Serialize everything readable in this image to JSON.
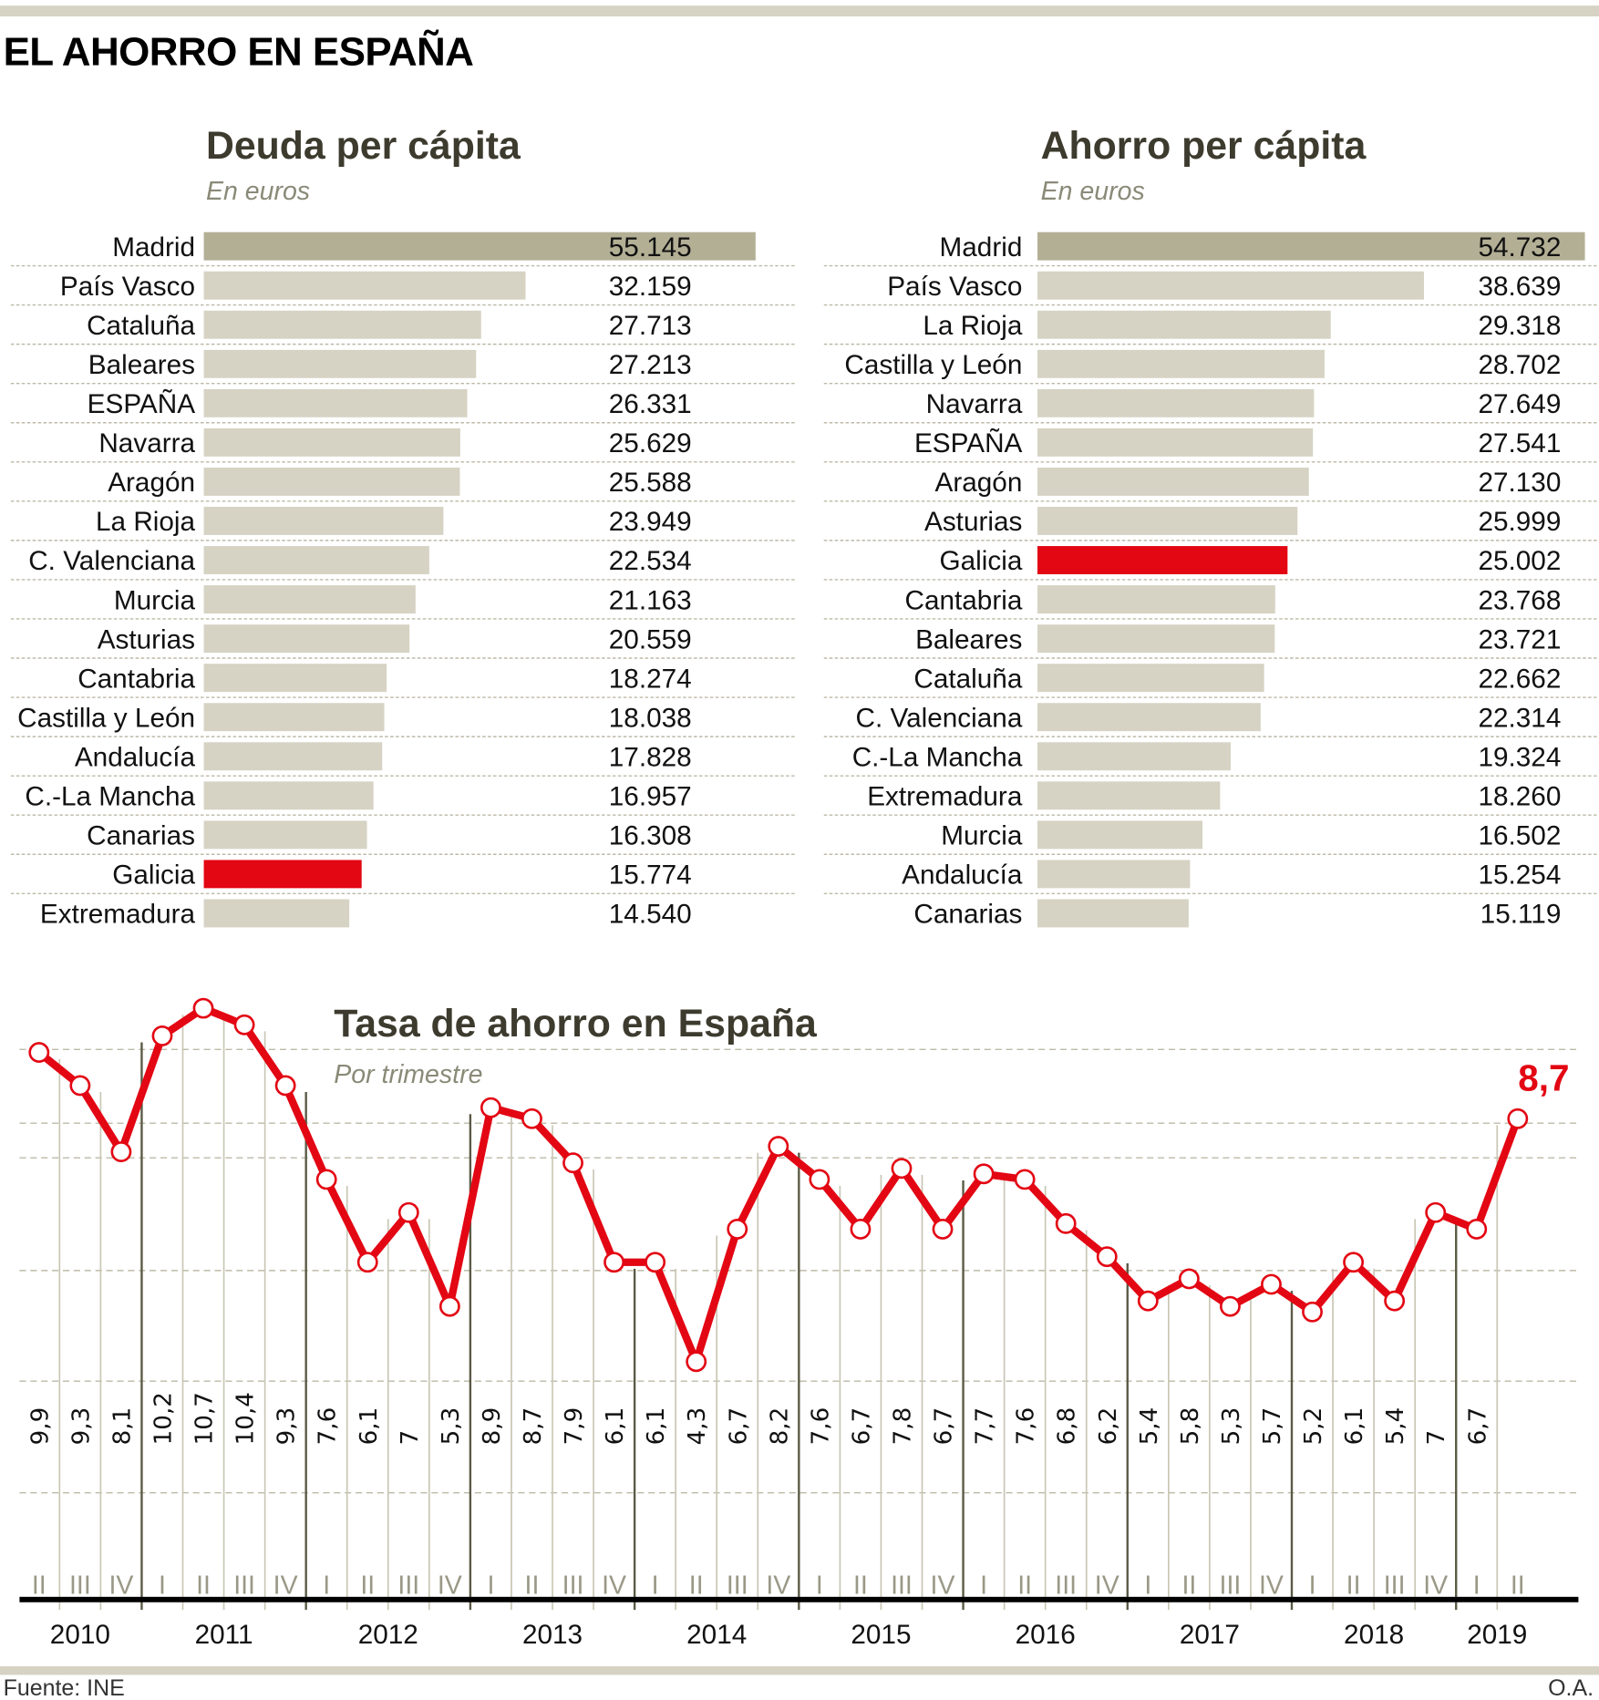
{
  "header": {
    "title": "EL AHORRO EN ESPAÑA"
  },
  "colors": {
    "rule": "#d6d3c4",
    "bar_default": "#d6d3c4",
    "bar_top": "#b3af95",
    "highlight": "#e30613",
    "heading": "#3d3b2e",
    "subtitle": "#8a8a78"
  },
  "footer": {
    "source": "Fuente: INE",
    "credit": "O.A."
  },
  "chart_data": [
    {
      "type": "bar",
      "orientation": "horizontal",
      "title": "Deuda per cápita",
      "subtitle": "En euros",
      "unit": "euros",
      "highlight": "Galicia",
      "top_category": "Madrid",
      "categories": [
        "Madrid",
        "País Vasco",
        "Cataluña",
        "Baleares",
        "ESPAÑA",
        "Navarra",
        "Aragón",
        "La Rioja",
        "C. Valenciana",
        "Murcia",
        "Asturias",
        "Cantabria",
        "Castilla y León",
        "Andalucía",
        "C.-La Mancha",
        "Canarias",
        "Galicia",
        "Extremadura"
      ],
      "values": [
        55145,
        32159,
        27713,
        27213,
        26331,
        25629,
        25588,
        23949,
        22534,
        21163,
        20559,
        18274,
        18038,
        17828,
        16957,
        16308,
        15774,
        14540
      ],
      "labels": [
        "55.145",
        "32.159",
        "27.713",
        "27.213",
        "26.331",
        "25.629",
        "25.588",
        "23.949",
        "22.534",
        "21.163",
        "20.559",
        "18.274",
        "18.038",
        "17.828",
        "16.957",
        "16.308",
        "15.774",
        "14.540"
      ]
    },
    {
      "type": "bar",
      "orientation": "horizontal",
      "title": "Ahorro per cápita",
      "subtitle": "En euros",
      "unit": "euros",
      "highlight": "Galicia",
      "top_category": "Madrid",
      "categories": [
        "Madrid",
        "País Vasco",
        "La Rioja",
        "Castilla y León",
        "Navarra",
        "ESPAÑA",
        "Aragón",
        "Asturias",
        "Galicia",
        "Cantabria",
        "Baleares",
        "Cataluña",
        "C. Valenciana",
        "C.-La Mancha",
        "Extremadura",
        "Murcia",
        "Andalucía",
        "Canarias"
      ],
      "values": [
        54732,
        38639,
        29318,
        28702,
        27649,
        27541,
        27130,
        25999,
        25002,
        23768,
        23721,
        22662,
        22314,
        19324,
        18260,
        16502,
        15254,
        15119
      ],
      "labels": [
        "54.732",
        "38.639",
        "29.318",
        "28.702",
        "27.649",
        "27.541",
        "27.130",
        "25.999",
        "25.002",
        "23.768",
        "23.721",
        "22.662",
        "22.314",
        "19.324",
        "18.260",
        "16.502",
        "15.254",
        "15.119"
      ]
    },
    {
      "type": "line",
      "title": "Tasa de ahorro en España",
      "subtitle": "Por trimestre",
      "xlabel": "",
      "ylabel": "",
      "ylim": [
        4.3,
        10.7
      ],
      "grid": true,
      "last_value_label": "8,7",
      "quarters": [
        "II",
        "III",
        "IV",
        "I",
        "II",
        "III",
        "IV",
        "I",
        "II",
        "III",
        "IV",
        "I",
        "II",
        "III",
        "IV",
        "I",
        "II",
        "III",
        "IV",
        "I",
        "II",
        "III",
        "IV",
        "I",
        "II",
        "III",
        "IV",
        "I",
        "II",
        "III",
        "IV",
        "I",
        "II",
        "III",
        "IV",
        "I",
        "II"
      ],
      "years": [
        {
          "label": "2010",
          "quarters": 3
        },
        {
          "label": "2011",
          "quarters": 4
        },
        {
          "label": "2012",
          "quarters": 4
        },
        {
          "label": "2013",
          "quarters": 4
        },
        {
          "label": "2014",
          "quarters": 4
        },
        {
          "label": "2015",
          "quarters": 4
        },
        {
          "label": "2016",
          "quarters": 4
        },
        {
          "label": "2017",
          "quarters": 4
        },
        {
          "label": "2018",
          "quarters": 4
        },
        {
          "label": "2019",
          "quarters": 2
        }
      ],
      "values": [
        9.9,
        9.3,
        8.1,
        10.2,
        10.7,
        10.4,
        9.3,
        7.6,
        6.1,
        7.0,
        5.3,
        8.9,
        8.7,
        7.9,
        6.1,
        6.1,
        4.3,
        6.7,
        8.2,
        7.6,
        6.7,
        7.8,
        6.7,
        7.7,
        7.6,
        6.8,
        6.2,
        5.4,
        5.8,
        5.3,
        5.7,
        5.2,
        6.1,
        5.4,
        7.0,
        6.7,
        8.7
      ],
      "labels": [
        "9,9",
        "9,3",
        "8,1",
        "10,2",
        "10,7",
        "10,4",
        "9,3",
        "7,6",
        "6,1",
        "7",
        "5,3",
        "8,9",
        "8,7",
        "7,9",
        "6,1",
        "6,1",
        "4,3",
        "6,7",
        "8,2",
        "7,6",
        "6,7",
        "7,8",
        "6,7",
        "7,7",
        "7,6",
        "6,8",
        "6,2",
        "5,4",
        "5,8",
        "5,3",
        "5,7",
        "5,2",
        "6,1",
        "5,4",
        "7",
        "6,7",
        ""
      ]
    }
  ]
}
